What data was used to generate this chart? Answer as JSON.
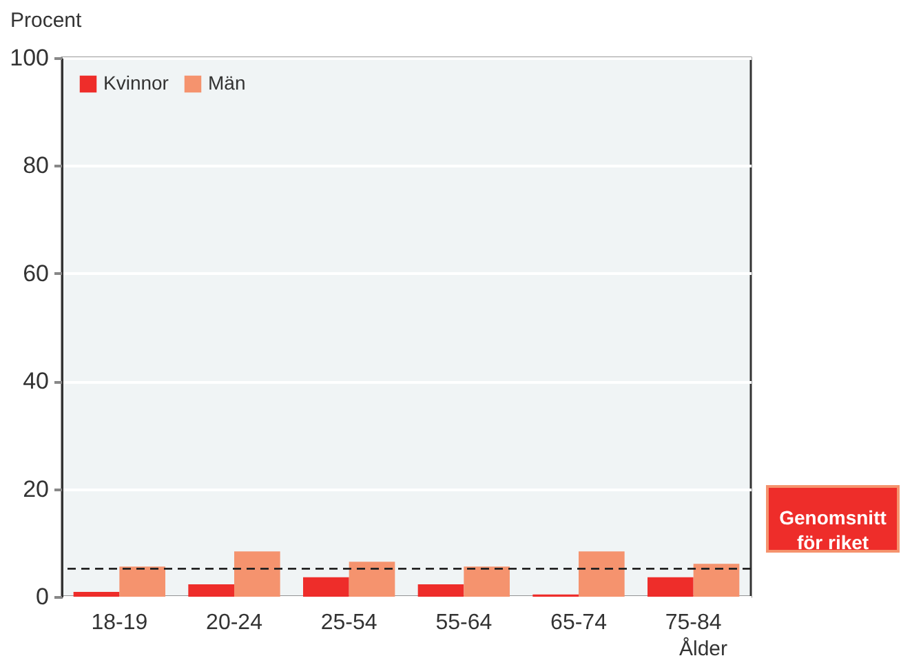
{
  "chart_data": {
    "type": "bar",
    "ylabel": "Procent",
    "xlabel": "Ålder",
    "categories": [
      "18-19",
      "20-24",
      "25-54",
      "55-64",
      "65-74",
      "75-84"
    ],
    "series": [
      {
        "name": "Kvinnor",
        "color": "#ee2d2a",
        "values": [
          0.9,
          2.3,
          3.6,
          2.3,
          0.4,
          3.6
        ]
      },
      {
        "name": "Män",
        "color": "#f5936e",
        "values": [
          5.6,
          8.4,
          6.5,
          5.6,
          8.4,
          6.1
        ]
      }
    ],
    "ylim": [
      0,
      100
    ],
    "yticks": [
      0,
      20,
      40,
      60,
      80,
      100
    ],
    "grid": "y",
    "legend": "top left",
    "ref_lines": [
      {
        "axis": "y",
        "value": 5.2,
        "label": "Genomsnitt\nför riket",
        "line_style": "dashed"
      }
    ]
  }
}
